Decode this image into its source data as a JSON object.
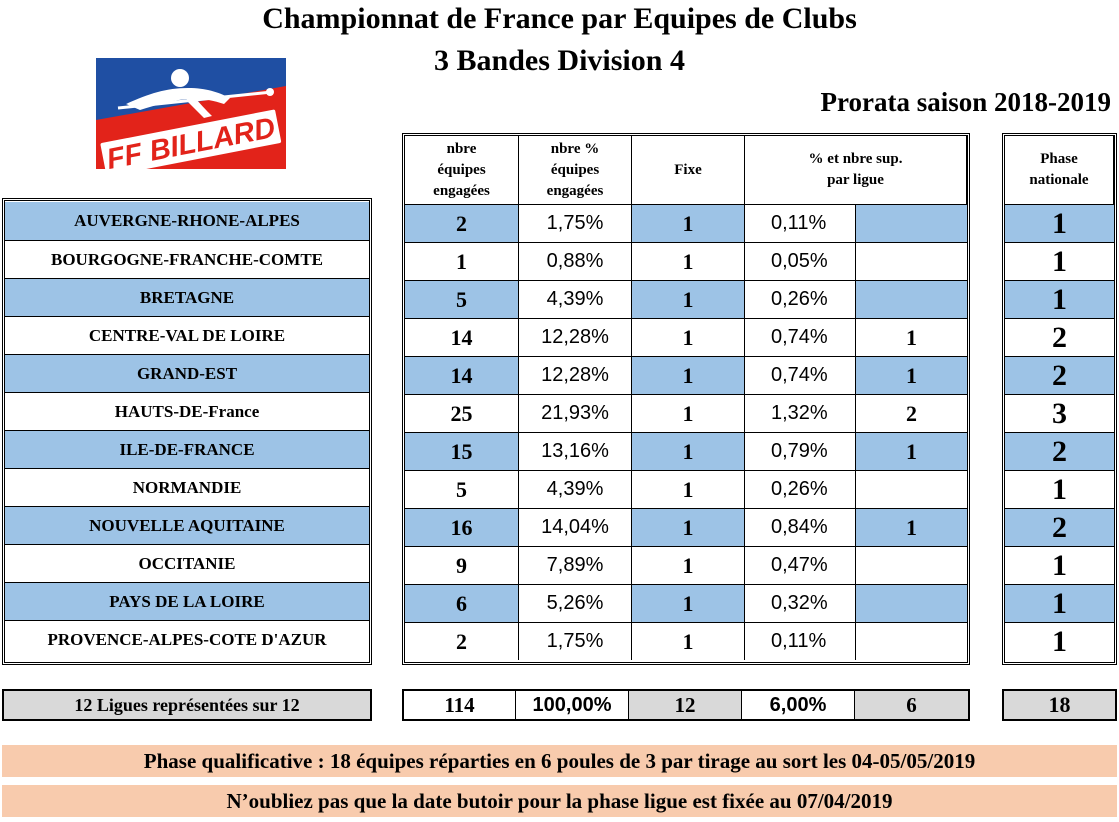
{
  "header": {
    "title_line1": "Championnat de France par Equipes de Clubs",
    "title_line2": "3 Bandes Division 4",
    "season": "Prorata saison 2018-2019"
  },
  "logo": {
    "text": "FF BILLARD",
    "colors": {
      "blue": "#1f4fa3",
      "red": "#e2231a"
    }
  },
  "columns": {
    "teams": "nbre équipes engagées",
    "percent": "nbre % équipes engagées",
    "fixe": "Fixe",
    "sup": "% et nbre sup. par ligue",
    "national": "Phase nationale"
  },
  "rows": [
    {
      "ligue": "AUVERGNE-RHONE-ALPES",
      "teams": "2",
      "percent": "1,75%",
      "fixe": "1",
      "sup_pct": "0,11%",
      "sup_nbr": "",
      "national": "1"
    },
    {
      "ligue": "BOURGOGNE-FRANCHE-COMTE",
      "teams": "1",
      "percent": "0,88%",
      "fixe": "1",
      "sup_pct": "0,05%",
      "sup_nbr": "",
      "national": "1"
    },
    {
      "ligue": "BRETAGNE",
      "teams": "5",
      "percent": "4,39%",
      "fixe": "1",
      "sup_pct": "0,26%",
      "sup_nbr": "",
      "national": "1"
    },
    {
      "ligue": "CENTRE-VAL DE LOIRE",
      "teams": "14",
      "percent": "12,28%",
      "fixe": "1",
      "sup_pct": "0,74%",
      "sup_nbr": "1",
      "national": "2"
    },
    {
      "ligue": "GRAND-EST",
      "teams": "14",
      "percent": "12,28%",
      "fixe": "1",
      "sup_pct": "0,74%",
      "sup_nbr": "1",
      "national": "2"
    },
    {
      "ligue": "HAUTS-DE-France",
      "teams": "25",
      "percent": "21,93%",
      "fixe": "1",
      "sup_pct": "1,32%",
      "sup_nbr": "2",
      "national": "3"
    },
    {
      "ligue": "ILE-DE-FRANCE",
      "teams": "15",
      "percent": "13,16%",
      "fixe": "1",
      "sup_pct": "0,79%",
      "sup_nbr": "1",
      "national": "2"
    },
    {
      "ligue": "NORMANDIE",
      "teams": "5",
      "percent": "4,39%",
      "fixe": "1",
      "sup_pct": "0,26%",
      "sup_nbr": "",
      "national": "1"
    },
    {
      "ligue": "NOUVELLE AQUITAINE",
      "teams": "16",
      "percent": "14,04%",
      "fixe": "1",
      "sup_pct": "0,84%",
      "sup_nbr": "1",
      "national": "2"
    },
    {
      "ligue": "OCCITANIE",
      "teams": "9",
      "percent": "7,89%",
      "fixe": "1",
      "sup_pct": "0,47%",
      "sup_nbr": "",
      "national": "1"
    },
    {
      "ligue": "PAYS DE LA LOIRE",
      "teams": "6",
      "percent": "5,26%",
      "fixe": "1",
      "sup_pct": "0,32%",
      "sup_nbr": "",
      "national": "1"
    },
    {
      "ligue": "PROVENCE-ALPES-COTE D'AZUR",
      "teams": "2",
      "percent": "1,75%",
      "fixe": "1",
      "sup_pct": "0,11%",
      "sup_nbr": "",
      "national": "1"
    }
  ],
  "totals": {
    "label": "12  Ligues représentées sur 12",
    "teams": "114",
    "percent": "100,00%",
    "fixe": "12",
    "sup_pct": "6,00%",
    "sup_nbr": "6",
    "national": "18"
  },
  "banners": {
    "line1": "Phase qualificative : 18 équipes réparties en 6 poules de 3 par tirage au sort les 04-05/05/2019",
    "line2": "N’oubliez pas que la date butoir pour la phase ligue est fixée au 07/04/2019"
  },
  "colors": {
    "row_blue": "#9dc3e6",
    "total_grey": "#d9d9d9",
    "banner": "#f8cbad"
  }
}
